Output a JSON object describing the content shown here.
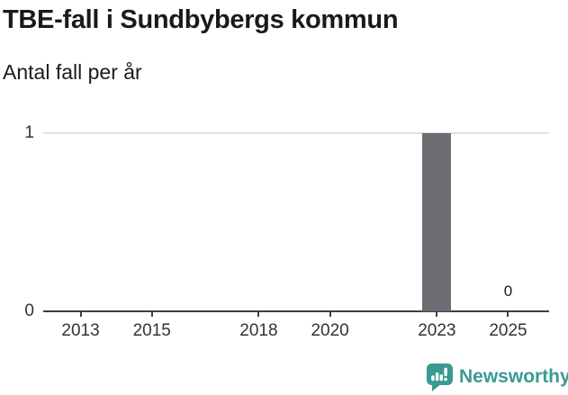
{
  "colors": {
    "brand_teal": "#3a9a92",
    "bar": "#6d6c72",
    "grid": "#e2e2e2",
    "axis": "#403f41",
    "title_text": "#1a1a1a",
    "tick_text": "#333333"
  },
  "chart_data": {
    "type": "bar",
    "title": "TBE-fall i Sundbybergs kommun",
    "subtitle": "Antal fall per år",
    "categories": [
      2012,
      2013,
      2014,
      2015,
      2016,
      2017,
      2018,
      2019,
      2020,
      2021,
      2022,
      2023,
      2024,
      2025
    ],
    "values": [
      0,
      0,
      0,
      0,
      0,
      0,
      0,
      0,
      0,
      0,
      0,
      1,
      0,
      0
    ],
    "x_ticks": [
      2013,
      2015,
      2018,
      2020,
      2023,
      2025
    ],
    "y_ticks": [
      0,
      1
    ],
    "ylim": [
      0,
      1
    ],
    "x_domain": [
      2011.95,
      2026.15
    ],
    "grid": "horizontal-gridline-at-1-only",
    "legend": "none",
    "annotations": [
      {
        "x": 2025,
        "y": 0,
        "text": "0"
      }
    ]
  },
  "footer": {
    "brand": "Newsworthy",
    "logo_icon": "newsworthy-speech-bubble-bar-chart-icon"
  }
}
